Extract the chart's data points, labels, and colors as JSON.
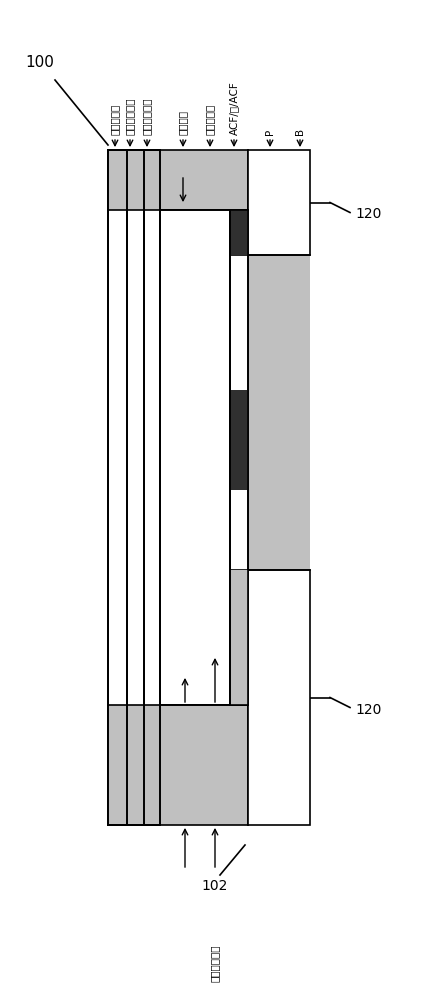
{
  "bg_color": "#ffffff",
  "line_color": "#000000",
  "gray_light": "#c0c0c0",
  "dark_gray": "#303030",
  "white": "#ffffff",
  "labels_top": [
    "外粘合薄膜",
    "外粘合粘合剂",
    "超高屏障薄膜",
    "光粘合层",
    "屏障粘合剂",
    "ACF/箔/ACF",
    "P",
    "B"
  ],
  "label_102": "102",
  "label_102_text": "高热导粘合剂",
  "label_100": "100",
  "label_120": "120",
  "fig_width": 4.3,
  "fig_height": 10.0
}
